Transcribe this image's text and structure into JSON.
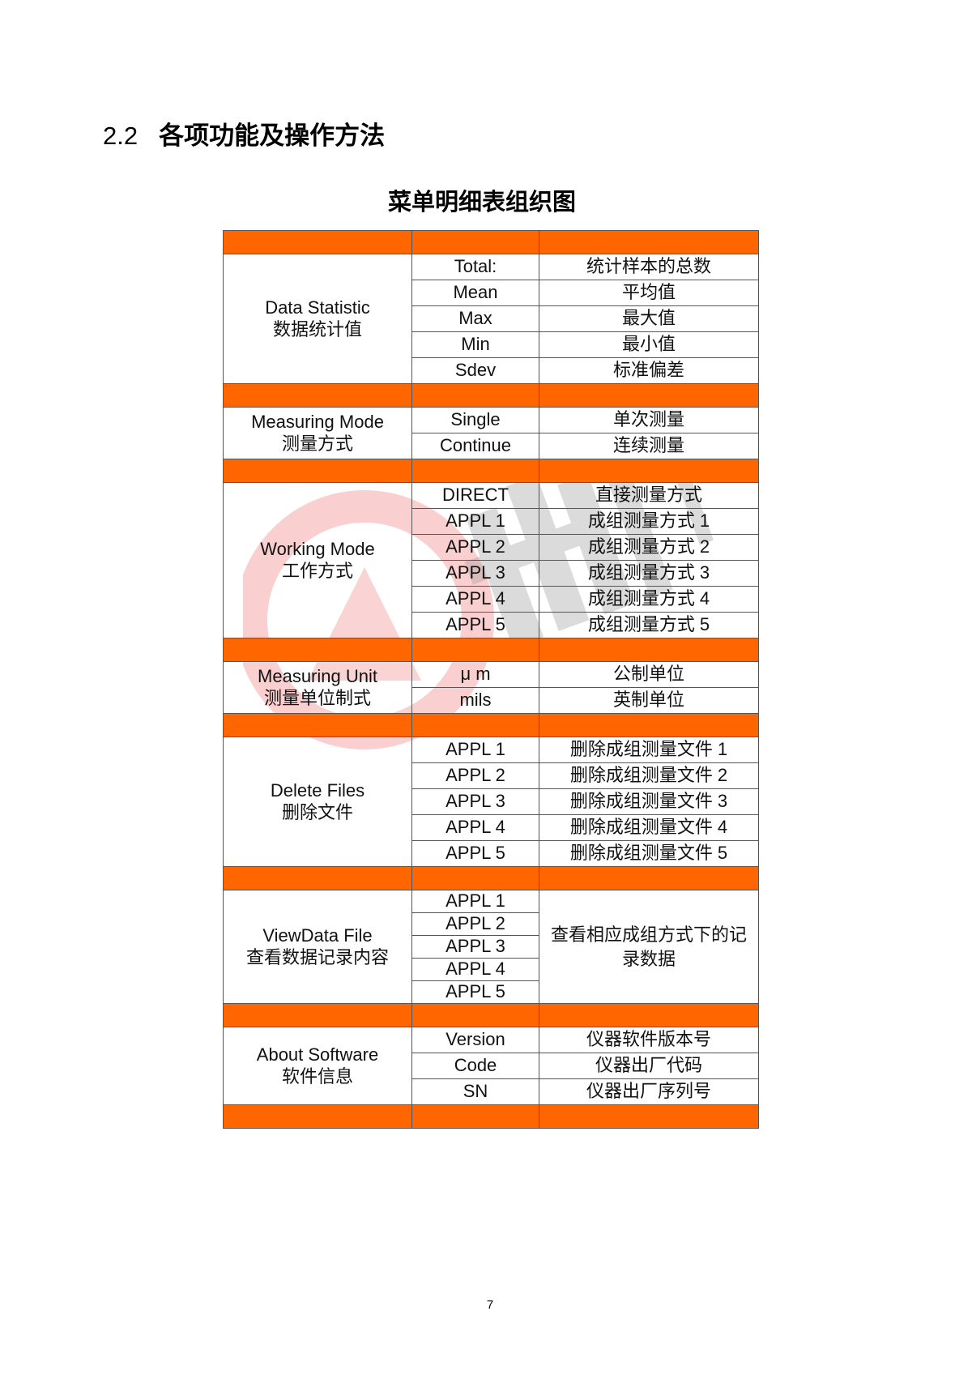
{
  "heading": {
    "number": "2.2",
    "text": "各项功能及操作方法"
  },
  "table_title": "菜单明细表组织图",
  "colors": {
    "separator": "#ff6600",
    "watermark_red": "#e8262a",
    "watermark_gray": "#9a9a9a"
  },
  "sections": [
    {
      "name_en": "Data Statistic",
      "name_zh": "数据统计值",
      "rows": [
        {
          "item": "Total:",
          "desc": "统计样本的总数"
        },
        {
          "item": "Mean",
          "desc": "平均值"
        },
        {
          "item": "Max",
          "desc": "最大值"
        },
        {
          "item": "Min",
          "desc": "最小值"
        },
        {
          "item": "Sdev",
          "desc": "标准偏差"
        }
      ]
    },
    {
      "name_en": "Measuring Mode",
      "name_zh": "测量方式",
      "rows": [
        {
          "item": "Single",
          "desc": "单次测量"
        },
        {
          "item": "Continue",
          "desc": "连续测量"
        }
      ]
    },
    {
      "name_en": "Working Mode",
      "name_zh": "工作方式",
      "rows": [
        {
          "item": "DIRECT",
          "desc": "直接测量方式"
        },
        {
          "item": "APPL 1",
          "desc": "成组测量方式 1"
        },
        {
          "item": "APPL 2",
          "desc": "成组测量方式 2"
        },
        {
          "item": "APPL 3",
          "desc": "成组测量方式 3"
        },
        {
          "item": "APPL 4",
          "desc": "成组测量方式 4"
        },
        {
          "item": "APPL 5",
          "desc": "成组测量方式 5"
        }
      ]
    },
    {
      "name_en": "Measuring Unit",
      "name_zh": "测量单位制式",
      "rows": [
        {
          "item": "μ m",
          "desc": "公制单位"
        },
        {
          "item": "mils",
          "desc": "英制单位"
        }
      ]
    },
    {
      "name_en": "Delete Files",
      "name_zh": "删除文件",
      "rows": [
        {
          "item": "APPL 1",
          "desc": "删除成组测量文件 1"
        },
        {
          "item": "APPL 2",
          "desc": "删除成组测量文件 2"
        },
        {
          "item": "APPL 3",
          "desc": "删除成组测量文件 3"
        },
        {
          "item": "APPL 4",
          "desc": "删除成组测量文件 4"
        },
        {
          "item": "APPL 5",
          "desc": "删除成组测量文件 5"
        }
      ]
    },
    {
      "name_en": "ViewData File",
      "name_zh": "查看数据记录内容",
      "merged_desc": "查看相应成组方式下的记录数据",
      "rows": [
        {
          "item": "APPL 1"
        },
        {
          "item": "APPL 2"
        },
        {
          "item": "APPL 3"
        },
        {
          "item": "APPL 4"
        },
        {
          "item": "APPL 5"
        }
      ]
    },
    {
      "name_en": "About Software",
      "name_zh": "软件信息",
      "rows": [
        {
          "item": "Version",
          "desc": "仪器软件版本号"
        },
        {
          "item": "Code",
          "desc": "仪器出厂代码"
        },
        {
          "item": "SN",
          "desc": "仪器出厂序列号"
        }
      ]
    }
  ],
  "page_number": "7"
}
